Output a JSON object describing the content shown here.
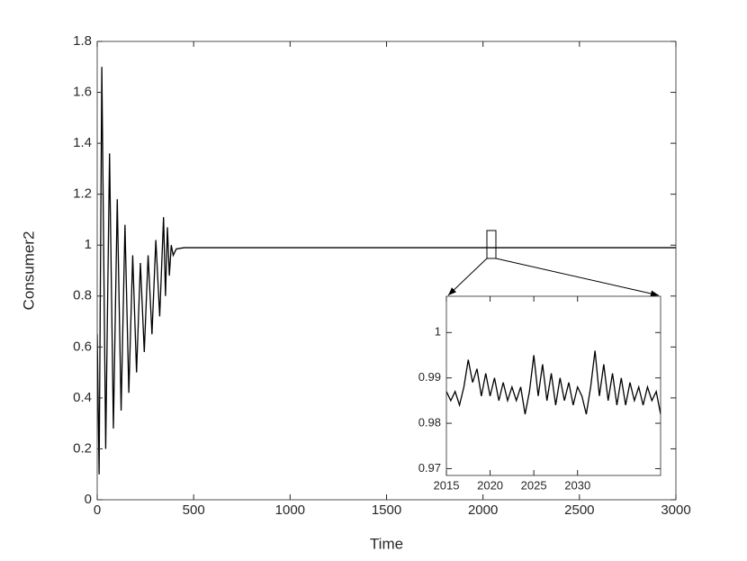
{
  "chart_data": [
    {
      "type": "line",
      "xlabel": "Time",
      "ylabel": "Consumer2",
      "xlim": [
        0,
        3000
      ],
      "xticks": [
        0,
        500,
        1000,
        1500,
        2000,
        2500,
        3000
      ],
      "ylim": [
        0,
        1.8
      ],
      "yticks": [
        0,
        0.2,
        0.4,
        0.6,
        0.8,
        1,
        1.2,
        1.4,
        1.6,
        1.8
      ],
      "series": [
        {
          "color": "#000000",
          "x": [
            0,
            10,
            24,
            44,
            64,
            84,
            104,
            124,
            144,
            164,
            184,
            204,
            224,
            244,
            264,
            284,
            304,
            324,
            344,
            354,
            364,
            374,
            384,
            394,
            410,
            450,
            500,
            1000,
            1500,
            2000,
            2500,
            3000
          ],
          "values": [
            0.65,
            0.1,
            1.7,
            0.2,
            1.36,
            0.28,
            1.18,
            0.35,
            1.08,
            0.42,
            0.96,
            0.5,
            0.93,
            0.58,
            0.96,
            0.65,
            1.02,
            0.72,
            1.11,
            0.8,
            1.07,
            0.88,
            1.0,
            0.96,
            0.985,
            0.99,
            0.99,
            0.99,
            0.99,
            0.99,
            0.99,
            0.99
          ]
        }
      ]
    },
    {
      "type": "line",
      "xlim": [
        2015,
        2039.5
      ],
      "xticks": [
        2015,
        2020,
        2025,
        2030
      ],
      "ylim": [
        0.9685,
        1.008
      ],
      "yticks": [
        0.97,
        0.98,
        0.99,
        1
      ],
      "series": [
        {
          "color": "#000000",
          "x": [
            2015,
            2015.5,
            2016,
            2016.5,
            2017,
            2017.5,
            2018,
            2018.5,
            2019,
            2019.5,
            2020,
            2020.5,
            2021,
            2021.5,
            2022,
            2022.5,
            2023,
            2023.5,
            2024,
            2024.5,
            2025,
            2025.5,
            2026,
            2026.5,
            2027,
            2027.5,
            2028,
            2028.5,
            2029,
            2029.5,
            2030,
            2030.5,
            2031,
            2031.5,
            2032,
            2032.5,
            2033,
            2033.5,
            2034,
            2034.5,
            2035,
            2035.5,
            2036,
            2036.5,
            2037,
            2037.5,
            2038,
            2038.5,
            2039,
            2039.5
          ],
          "values": [
            0.987,
            0.985,
            0.987,
            0.984,
            0.988,
            0.994,
            0.989,
            0.992,
            0.986,
            0.991,
            0.986,
            0.99,
            0.985,
            0.989,
            0.985,
            0.988,
            0.985,
            0.988,
            0.982,
            0.987,
            0.995,
            0.986,
            0.993,
            0.985,
            0.991,
            0.984,
            0.99,
            0.985,
            0.989,
            0.984,
            0.988,
            0.986,
            0.982,
            0.988,
            0.996,
            0.986,
            0.993,
            0.985,
            0.991,
            0.984,
            0.99,
            0.984,
            0.989,
            0.985,
            0.988,
            0.984,
            0.988,
            0.985,
            0.987,
            0.982
          ]
        }
      ]
    }
  ]
}
